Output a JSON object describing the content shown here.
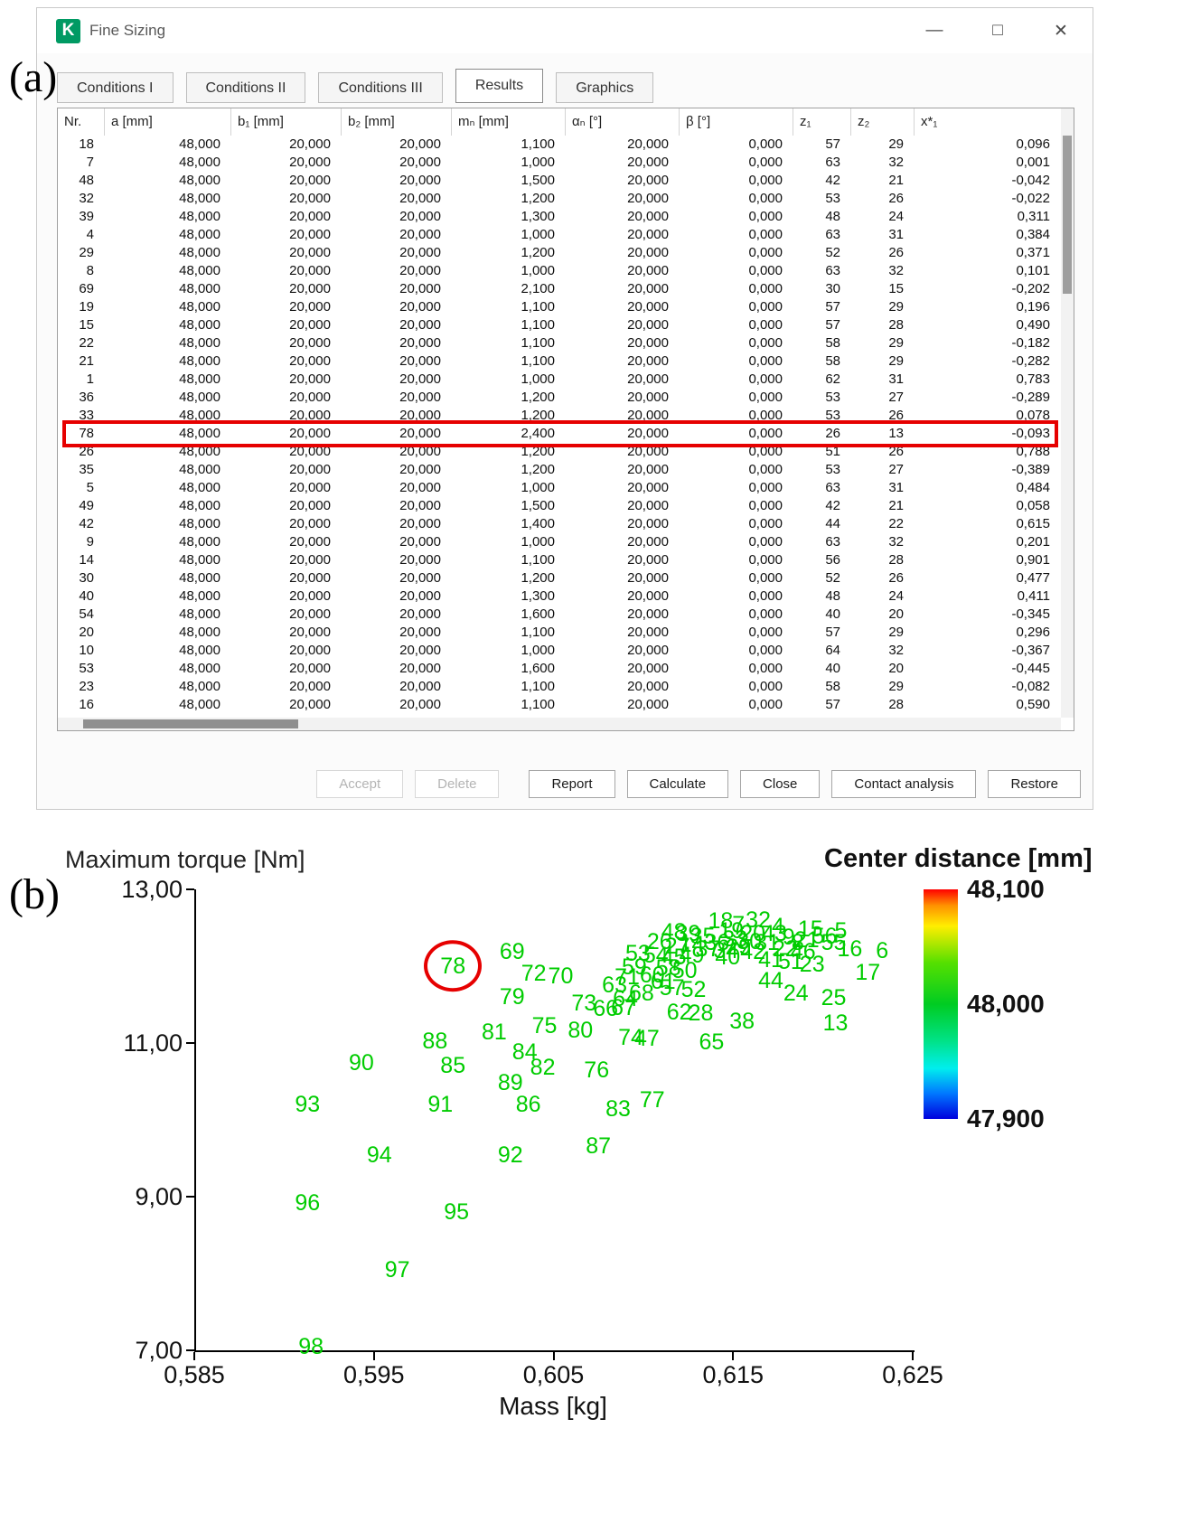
{
  "figure_labels": {
    "a": "(a)",
    "b": "(b)"
  },
  "window": {
    "icon_letter": "K",
    "title": "Fine Sizing",
    "controls": {
      "minimize": "—",
      "maximize": "□",
      "close": "✕"
    },
    "tabs": [
      {
        "label": "Conditions I",
        "active": false
      },
      {
        "label": "Conditions II",
        "active": false
      },
      {
        "label": "Conditions III",
        "active": false
      },
      {
        "label": "Results",
        "active": true
      },
      {
        "label": "Graphics",
        "active": false
      }
    ],
    "table": {
      "columns": [
        "Nr.",
        "a [mm]",
        "b₁ [mm]",
        "b₂ [mm]",
        "mₙ [mm]",
        "αₙ [°]",
        "β [°]",
        "z₁",
        "z₂",
        "x*₁"
      ],
      "highlighted_nr": "78",
      "rows": [
        [
          "18",
          "48,000",
          "20,000",
          "20,000",
          "1,100",
          "20,000",
          "0,000",
          "57",
          "29",
          "0,096"
        ],
        [
          "7",
          "48,000",
          "20,000",
          "20,000",
          "1,000",
          "20,000",
          "0,000",
          "63",
          "32",
          "0,001"
        ],
        [
          "48",
          "48,000",
          "20,000",
          "20,000",
          "1,500",
          "20,000",
          "0,000",
          "42",
          "21",
          "-0,042"
        ],
        [
          "32",
          "48,000",
          "20,000",
          "20,000",
          "1,200",
          "20,000",
          "0,000",
          "53",
          "26",
          "-0,022"
        ],
        [
          "39",
          "48,000",
          "20,000",
          "20,000",
          "1,300",
          "20,000",
          "0,000",
          "48",
          "24",
          "0,311"
        ],
        [
          "4",
          "48,000",
          "20,000",
          "20,000",
          "1,000",
          "20,000",
          "0,000",
          "63",
          "31",
          "0,384"
        ],
        [
          "29",
          "48,000",
          "20,000",
          "20,000",
          "1,200",
          "20,000",
          "0,000",
          "52",
          "26",
          "0,371"
        ],
        [
          "8",
          "48,000",
          "20,000",
          "20,000",
          "1,000",
          "20,000",
          "0,000",
          "63",
          "32",
          "0,101"
        ],
        [
          "69",
          "48,000",
          "20,000",
          "20,000",
          "2,100",
          "20,000",
          "0,000",
          "30",
          "15",
          "-0,202"
        ],
        [
          "19",
          "48,000",
          "20,000",
          "20,000",
          "1,100",
          "20,000",
          "0,000",
          "57",
          "29",
          "0,196"
        ],
        [
          "15",
          "48,000",
          "20,000",
          "20,000",
          "1,100",
          "20,000",
          "0,000",
          "57",
          "28",
          "0,490"
        ],
        [
          "22",
          "48,000",
          "20,000",
          "20,000",
          "1,100",
          "20,000",
          "0,000",
          "58",
          "29",
          "-0,182"
        ],
        [
          "21",
          "48,000",
          "20,000",
          "20,000",
          "1,100",
          "20,000",
          "0,000",
          "58",
          "29",
          "-0,282"
        ],
        [
          "1",
          "48,000",
          "20,000",
          "20,000",
          "1,000",
          "20,000",
          "0,000",
          "62",
          "31",
          "0,783"
        ],
        [
          "36",
          "48,000",
          "20,000",
          "20,000",
          "1,200",
          "20,000",
          "0,000",
          "53",
          "27",
          "-0,289"
        ],
        [
          "33",
          "48,000",
          "20,000",
          "20,000",
          "1,200",
          "20,000",
          "0,000",
          "53",
          "26",
          "0,078"
        ],
        [
          "78",
          "48,000",
          "20,000",
          "20,000",
          "2,400",
          "20,000",
          "0,000",
          "26",
          "13",
          "-0,093"
        ],
        [
          "26",
          "48,000",
          "20,000",
          "20,000",
          "1,200",
          "20,000",
          "0,000",
          "51",
          "26",
          "0,788"
        ],
        [
          "35",
          "48,000",
          "20,000",
          "20,000",
          "1,200",
          "20,000",
          "0,000",
          "53",
          "27",
          "-0,389"
        ],
        [
          "5",
          "48,000",
          "20,000",
          "20,000",
          "1,000",
          "20,000",
          "0,000",
          "63",
          "31",
          "0,484"
        ],
        [
          "49",
          "48,000",
          "20,000",
          "20,000",
          "1,500",
          "20,000",
          "0,000",
          "42",
          "21",
          "0,058"
        ],
        [
          "42",
          "48,000",
          "20,000",
          "20,000",
          "1,400",
          "20,000",
          "0,000",
          "44",
          "22",
          "0,615"
        ],
        [
          "9",
          "48,000",
          "20,000",
          "20,000",
          "1,000",
          "20,000",
          "0,000",
          "63",
          "32",
          "0,201"
        ],
        [
          "14",
          "48,000",
          "20,000",
          "20,000",
          "1,100",
          "20,000",
          "0,000",
          "56",
          "28",
          "0,901"
        ],
        [
          "30",
          "48,000",
          "20,000",
          "20,000",
          "1,200",
          "20,000",
          "0,000",
          "52",
          "26",
          "0,477"
        ],
        [
          "40",
          "48,000",
          "20,000",
          "20,000",
          "1,300",
          "20,000",
          "0,000",
          "48",
          "24",
          "0,411"
        ],
        [
          "54",
          "48,000",
          "20,000",
          "20,000",
          "1,600",
          "20,000",
          "0,000",
          "40",
          "20",
          "-0,345"
        ],
        [
          "20",
          "48,000",
          "20,000",
          "20,000",
          "1,100",
          "20,000",
          "0,000",
          "57",
          "29",
          "0,296"
        ],
        [
          "10",
          "48,000",
          "20,000",
          "20,000",
          "1,000",
          "20,000",
          "0,000",
          "64",
          "32",
          "-0,367"
        ],
        [
          "53",
          "48,000",
          "20,000",
          "20,000",
          "1,600",
          "20,000",
          "0,000",
          "40",
          "20",
          "-0,445"
        ],
        [
          "23",
          "48,000",
          "20,000",
          "20,000",
          "1,100",
          "20,000",
          "0,000",
          "58",
          "29",
          "-0,082"
        ],
        [
          "16",
          "48,000",
          "20,000",
          "20,000",
          "1,100",
          "20,000",
          "0,000",
          "57",
          "28",
          "0,590"
        ]
      ]
    },
    "buttons": [
      {
        "label": "Accept",
        "enabled": false
      },
      {
        "label": "Delete",
        "enabled": false
      },
      {
        "label": "Report",
        "enabled": true
      },
      {
        "label": "Calculate",
        "enabled": true
      },
      {
        "label": "Close",
        "enabled": true
      },
      {
        "label": "Contact analysis",
        "enabled": true
      },
      {
        "label": "Restore",
        "enabled": true
      }
    ]
  },
  "chart_data": {
    "type": "scatter",
    "xlabel": "Mass [kg]",
    "ylabel": "Maximum torque [Nm]",
    "xlim": [
      0.585,
      0.625
    ],
    "ylim": [
      7.0,
      13.0
    ],
    "xticks": [
      "0,585",
      "0,595",
      "0,605",
      "0,615",
      "0,625"
    ],
    "yticks": [
      "13,00",
      "11,00",
      "9,00",
      "7,00"
    ],
    "point_color": "#00cc00",
    "highlight_color": "#e60000",
    "colorbar": {
      "title": "Center distance [mm]",
      "labels": [
        "48,100",
        "48,000",
        "47,900"
      ],
      "gradient": [
        "#ff0000 0%",
        "#ff9100 7%",
        "#ffee00 16%",
        "#55e000 32%",
        "#00cc22 50%",
        "#00e287 66%",
        "#00eeee 78%",
        "#0077ff 89%",
        "#0000dd 100%"
      ]
    },
    "points": [
      {
        "id": "78",
        "x": 0.5993,
        "y": 11.98,
        "circled": true
      },
      {
        "id": "69",
        "x": 0.6026,
        "y": 12.17
      },
      {
        "id": "72",
        "x": 0.6038,
        "y": 11.88
      },
      {
        "id": "70",
        "x": 0.6053,
        "y": 11.85
      },
      {
        "id": "79",
        "x": 0.6026,
        "y": 11.58
      },
      {
        "id": "73",
        "x": 0.6066,
        "y": 11.5
      },
      {
        "id": "66",
        "x": 0.6078,
        "y": 11.42
      },
      {
        "id": "67",
        "x": 0.6088,
        "y": 11.44
      },
      {
        "id": "63",
        "x": 0.6083,
        "y": 11.73
      },
      {
        "id": "81",
        "x": 0.6016,
        "y": 11.12
      },
      {
        "id": "75",
        "x": 0.6044,
        "y": 11.2
      },
      {
        "id": "80",
        "x": 0.6064,
        "y": 11.14
      },
      {
        "id": "74",
        "x": 0.6092,
        "y": 11.05
      },
      {
        "id": "47",
        "x": 0.6101,
        "y": 11.03
      },
      {
        "id": "65",
        "x": 0.6137,
        "y": 10.99
      },
      {
        "id": "88",
        "x": 0.5983,
        "y": 11.0
      },
      {
        "id": "84",
        "x": 0.6033,
        "y": 10.86
      },
      {
        "id": "85",
        "x": 0.5993,
        "y": 10.68
      },
      {
        "id": "82",
        "x": 0.6043,
        "y": 10.66
      },
      {
        "id": "76",
        "x": 0.6073,
        "y": 10.62
      },
      {
        "id": "90",
        "x": 0.5942,
        "y": 10.72
      },
      {
        "id": "89",
        "x": 0.6025,
        "y": 10.46
      },
      {
        "id": "93",
        "x": 0.5912,
        "y": 10.18
      },
      {
        "id": "91",
        "x": 0.5986,
        "y": 10.18
      },
      {
        "id": "86",
        "x": 0.6035,
        "y": 10.18
      },
      {
        "id": "83",
        "x": 0.6085,
        "y": 10.12
      },
      {
        "id": "77",
        "x": 0.6104,
        "y": 10.23
      },
      {
        "id": "94",
        "x": 0.5952,
        "y": 9.52
      },
      {
        "id": "92",
        "x": 0.6025,
        "y": 9.52
      },
      {
        "id": "87",
        "x": 0.6074,
        "y": 9.64
      },
      {
        "id": "96",
        "x": 0.5912,
        "y": 8.9
      },
      {
        "id": "95",
        "x": 0.5995,
        "y": 8.78
      },
      {
        "id": "97",
        "x": 0.5962,
        "y": 8.02
      },
      {
        "id": "98",
        "x": 0.5914,
        "y": 7.02
      },
      {
        "id": "48",
        "x": 0.6116,
        "y": 12.42
      },
      {
        "id": "18",
        "x": 0.6142,
        "y": 12.56
      },
      {
        "id": "7",
        "x": 0.6152,
        "y": 12.52
      },
      {
        "id": "32",
        "x": 0.6163,
        "y": 12.58
      },
      {
        "id": "4",
        "x": 0.6174,
        "y": 12.5
      },
      {
        "id": "15",
        "x": 0.6192,
        "y": 12.46
      },
      {
        "id": "5",
        "x": 0.6209,
        "y": 12.44
      },
      {
        "id": "19",
        "x": 0.6148,
        "y": 12.44
      },
      {
        "id": "20",
        "x": 0.616,
        "y": 12.4
      },
      {
        "id": "33",
        "x": 0.615,
        "y": 12.33
      },
      {
        "id": "30",
        "x": 0.6158,
        "y": 12.3
      },
      {
        "id": "36",
        "x": 0.614,
        "y": 12.28
      },
      {
        "id": "31",
        "x": 0.6168,
        "y": 12.28
      },
      {
        "id": "9",
        "x": 0.618,
        "y": 12.35
      },
      {
        "id": "8",
        "x": 0.6185,
        "y": 12.28
      },
      {
        "id": "21",
        "x": 0.619,
        "y": 12.32
      },
      {
        "id": "29",
        "x": 0.6152,
        "y": 12.22
      },
      {
        "id": "22",
        "x": 0.6178,
        "y": 12.2
      },
      {
        "id": "14",
        "x": 0.6126,
        "y": 12.26
      },
      {
        "id": "37",
        "x": 0.6135,
        "y": 12.2
      },
      {
        "id": "34",
        "x": 0.6145,
        "y": 12.18
      },
      {
        "id": "26",
        "x": 0.6108,
        "y": 12.3
      },
      {
        "id": "27",
        "x": 0.6118,
        "y": 12.24
      },
      {
        "id": "35",
        "x": 0.6132,
        "y": 12.36
      },
      {
        "id": "39",
        "x": 0.6124,
        "y": 12.4
      },
      {
        "id": "42",
        "x": 0.616,
        "y": 12.16
      },
      {
        "id": "43",
        "x": 0.6172,
        "y": 12.4
      },
      {
        "id": "46",
        "x": 0.6188,
        "y": 12.16
      },
      {
        "id": "56",
        "x": 0.62,
        "y": 12.36
      },
      {
        "id": "55",
        "x": 0.6205,
        "y": 12.28
      },
      {
        "id": "16",
        "x": 0.6214,
        "y": 12.2
      },
      {
        "id": "6",
        "x": 0.6232,
        "y": 12.18
      },
      {
        "id": "53",
        "x": 0.6096,
        "y": 12.14
      },
      {
        "id": "54",
        "x": 0.6106,
        "y": 12.12
      },
      {
        "id": "45",
        "x": 0.6116,
        "y": 12.1
      },
      {
        "id": "49",
        "x": 0.6126,
        "y": 12.12
      },
      {
        "id": "59",
        "x": 0.6094,
        "y": 11.97
      },
      {
        "id": "58",
        "x": 0.6113,
        "y": 11.95
      },
      {
        "id": "50",
        "x": 0.6122,
        "y": 11.92
      },
      {
        "id": "40",
        "x": 0.6146,
        "y": 12.1
      },
      {
        "id": "41",
        "x": 0.617,
        "y": 12.06
      },
      {
        "id": "51",
        "x": 0.6181,
        "y": 12.03
      },
      {
        "id": "23",
        "x": 0.6193,
        "y": 12.0
      },
      {
        "id": "17",
        "x": 0.6224,
        "y": 11.9
      },
      {
        "id": "64",
        "x": 0.6089,
        "y": 11.55
      },
      {
        "id": "57",
        "x": 0.6115,
        "y": 11.7
      },
      {
        "id": "52",
        "x": 0.6127,
        "y": 11.67
      },
      {
        "id": "44",
        "x": 0.617,
        "y": 11.79
      },
      {
        "id": "24",
        "x": 0.6184,
        "y": 11.62
      },
      {
        "id": "25",
        "x": 0.6205,
        "y": 11.56
      },
      {
        "id": "62",
        "x": 0.6119,
        "y": 11.38
      },
      {
        "id": "28",
        "x": 0.6131,
        "y": 11.36
      },
      {
        "id": "38",
        "x": 0.6154,
        "y": 11.26
      },
      {
        "id": "13",
        "x": 0.6206,
        "y": 11.24
      },
      {
        "id": "60",
        "x": 0.6104,
        "y": 11.86
      },
      {
        "id": "61",
        "x": 0.611,
        "y": 11.78
      },
      {
        "id": "68",
        "x": 0.6098,
        "y": 11.62
      },
      {
        "id": "71",
        "x": 0.609,
        "y": 11.84
      }
    ]
  }
}
